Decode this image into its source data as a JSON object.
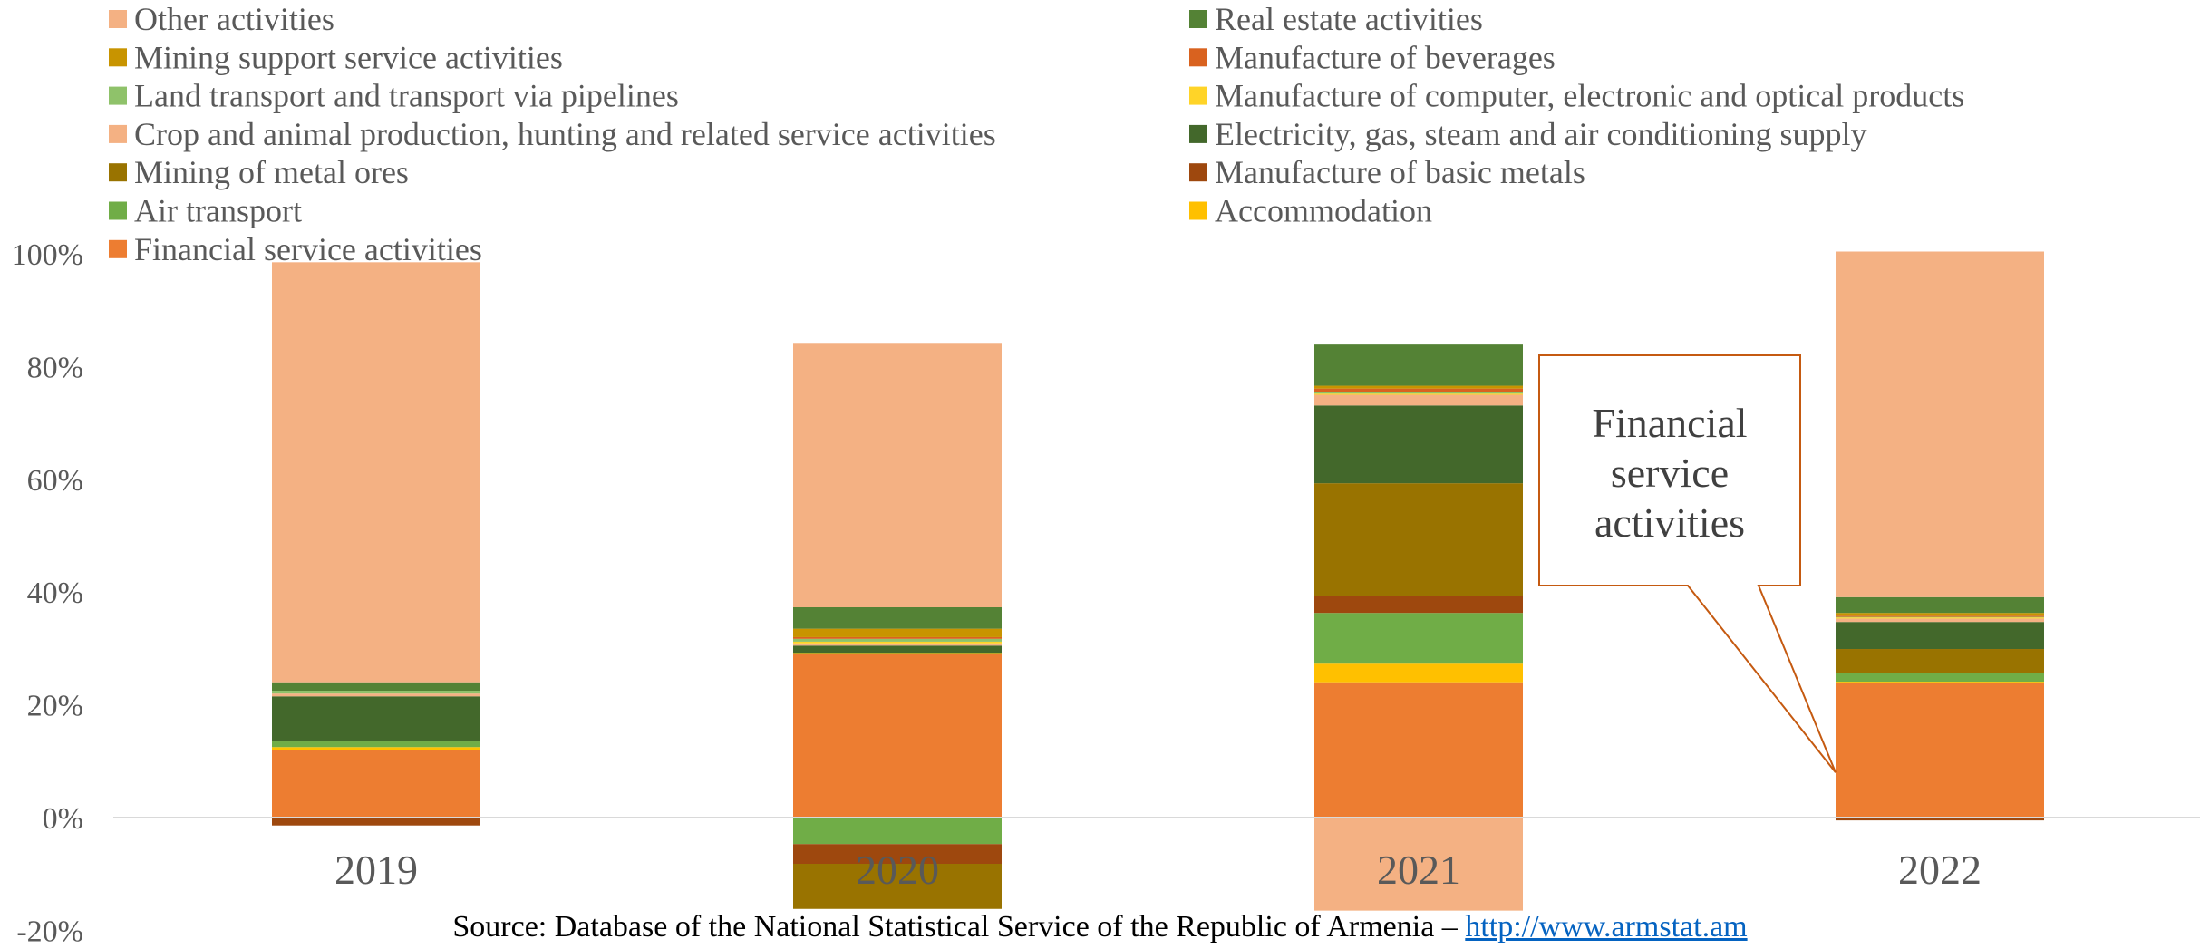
{
  "chart_data": {
    "type": "bar",
    "stacked": true,
    "categories": [
      "2019",
      "2020",
      "2021",
      "2022"
    ],
    "ylim": [
      -20,
      100
    ],
    "yticks": [
      -20,
      0,
      20,
      40,
      60,
      80,
      100
    ],
    "ytick_labels": [
      "-20%",
      "0%",
      "20%",
      "40%",
      "60%",
      "80%",
      "100%"
    ],
    "grid": false,
    "legend_position": "top",
    "series": [
      {
        "name": "Financial service activities",
        "color": "#ed7d31",
        "values": [
          12.0,
          29.0,
          24.0,
          23.8
        ]
      },
      {
        "name": "Accommodation",
        "color": "#ffc000",
        "values": [
          0.5,
          0.2,
          3.3,
          0.3
        ]
      },
      {
        "name": "Air transport",
        "color": "#70ad47",
        "values": [
          1.0,
          -4.7,
          9.0,
          1.6
        ]
      },
      {
        "name": "Manufacture of basic metals",
        "color": "#9e480e",
        "values": [
          -1.4,
          -3.5,
          3.0,
          -0.5
        ]
      },
      {
        "name": "Mining of metal ores",
        "color": "#997300",
        "values": [
          0.0,
          -8.0,
          20.0,
          4.2
        ]
      },
      {
        "name": "Electricity, gas, steam and air conditioning supply",
        "color": "#43682b",
        "values": [
          8.0,
          1.3,
          13.8,
          4.8
        ]
      },
      {
        "name": "Crop and animal production,  hunting and  related service activities",
        "color": "#f4b183",
        "values": [
          0.5,
          0.4,
          1.9,
          0.6
        ]
      },
      {
        "name": "Manufacture of computer, electronic and optical products",
        "color": "#ffd428",
        "values": [
          0.0,
          0.3,
          0.2,
          0.2
        ]
      },
      {
        "name": "Land transport and transport via pipelines",
        "color": "#8fc26a",
        "values": [
          0.5,
          0.5,
          0.3,
          0.1
        ]
      },
      {
        "name": "Manufacture of beverages",
        "color": "#d9621f",
        "values": [
          0.0,
          0.3,
          0.6,
          0.2
        ]
      },
      {
        "name": "Mining support service activities",
        "color": "#c89400",
        "values": [
          0.0,
          1.5,
          0.5,
          0.5
        ]
      },
      {
        "name": "Real estate activities",
        "color": "#548235",
        "values": [
          1.5,
          3.8,
          7.3,
          2.8
        ]
      },
      {
        "name": "Other  activities",
        "color": "#f4b183",
        "values": [
          74.5,
          46.9,
          -16.5,
          61.3
        ]
      }
    ],
    "legend_left": [
      {
        "label": "Other  activities",
        "color": "#f4b183"
      },
      {
        "label": "Mining support service activities",
        "color": "#c89400"
      },
      {
        "label": "Land transport and transport via pipelines",
        "color": "#8fc26a"
      },
      {
        "label": "Crop and animal production,  hunting and  related service activities",
        "color": "#f4b183"
      },
      {
        "label": "Mining of metal ores",
        "color": "#997300"
      },
      {
        "label": "Air transport",
        "color": "#70ad47"
      },
      {
        "label": "Financial service activities",
        "color": "#ed7d31"
      }
    ],
    "legend_right": [
      {
        "label": "Real estate activities",
        "color": "#548235"
      },
      {
        "label": "Manufacture of beverages",
        "color": "#d9621f"
      },
      {
        "label": "Manufacture of computer, electronic and optical products",
        "color": "#ffd428"
      },
      {
        "label": "Electricity, gas, steam and air conditioning supply",
        "color": "#43682b"
      },
      {
        "label": "Manufacture of basic metals",
        "color": "#9e480e"
      },
      {
        "label": "Accommodation",
        "color": "#ffc000"
      }
    ],
    "callout": {
      "lines": [
        "Financial",
        "service",
        "activities"
      ],
      "target_category": "2022",
      "target_value": 8,
      "border_color": "#c55a11"
    }
  },
  "source": {
    "text": "Source: Database of the National Statistical Service of the Republic of Armenia – ",
    "link_text": "http://www.armstat.am"
  }
}
